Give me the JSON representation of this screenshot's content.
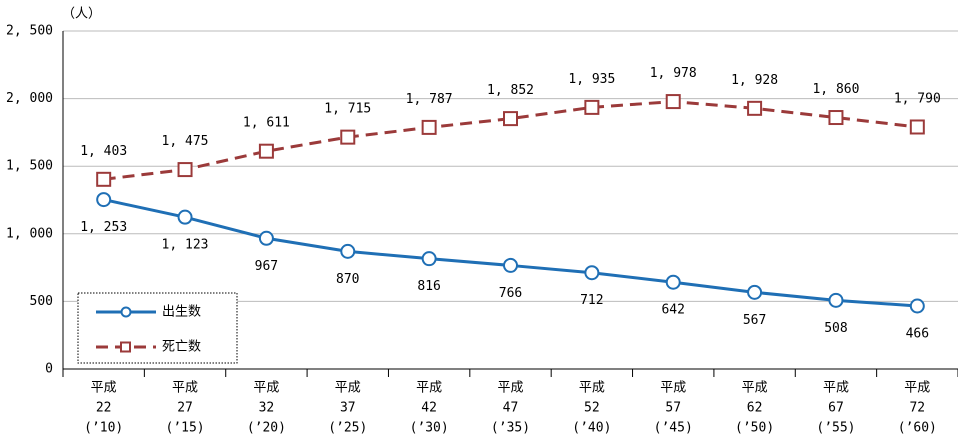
{
  "chart_data": {
    "type": "line",
    "y_label": "（人）",
    "categories": [
      [
        "平成",
        "22",
        "(’10)"
      ],
      [
        "平成",
        "27",
        "(’15)"
      ],
      [
        "平成",
        "32",
        "(’20)"
      ],
      [
        "平成",
        "37",
        "(’25)"
      ],
      [
        "平成",
        "42",
        "(’30)"
      ],
      [
        "平成",
        "47",
        "(’35)"
      ],
      [
        "平成",
        "52",
        "(’40)"
      ],
      [
        "平成",
        "57",
        "(’45)"
      ],
      [
        "平成",
        "62",
        "(’50)"
      ],
      [
        "平成",
        "67",
        "(’55)"
      ],
      [
        "平成",
        "72",
        "(’60)"
      ]
    ],
    "series": [
      {
        "name": "出生数",
        "color": "#1f6fb5",
        "dash": false,
        "marker": "circle",
        "values": [
          1253,
          1123,
          967,
          870,
          816,
          766,
          712,
          642,
          567,
          508,
          466
        ],
        "value_labels": [
          "1, 253",
          "1, 123",
          "967",
          "870",
          "816",
          "766",
          "712",
          "642",
          "567",
          "508",
          "466"
        ]
      },
      {
        "name": "死亡数",
        "color": "#9b3a3a",
        "dash": true,
        "marker": "square",
        "values": [
          1403,
          1475,
          1611,
          1715,
          1787,
          1852,
          1935,
          1978,
          1928,
          1860,
          1790
        ],
        "value_labels": [
          "1, 403",
          "1, 475",
          "1, 611",
          "1, 715",
          "1, 787",
          "1, 852",
          "1, 935",
          "1, 978",
          "1, 928",
          "1, 860",
          "1, 790"
        ]
      }
    ],
    "ylim": [
      0,
      2500
    ],
    "yticks": [
      0,
      500,
      {
        "value": 1000,
        "label": "1, 000"
      },
      {
        "value": 1500,
        "label": "1, 500"
      },
      {
        "value": 2000,
        "label": "2, 000"
      },
      {
        "value": 2500,
        "label": "2, 500"
      }
    ],
    "grid": true,
    "legend": "lower left"
  }
}
